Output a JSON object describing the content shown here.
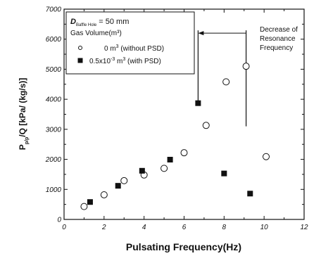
{
  "chart_data": {
    "type": "scatter",
    "title": "",
    "xlabel": "Pulsating Frequency(Hz)",
    "ylabel_main": "P",
    "ylabel_sub": "p/p",
    "ylabel_rest": "/Q [kPa/ (kg/s)]",
    "xlim": [
      0,
      12
    ],
    "ylim": [
      0,
      7000
    ],
    "xticks": [
      0,
      2,
      4,
      6,
      8,
      10,
      12
    ],
    "yticks": [
      0,
      1000,
      2000,
      3000,
      4000,
      5000,
      6000,
      7000
    ],
    "legend": {
      "placement": "top-left",
      "line1_prefix": "D",
      "line1_sub": "Baffle Hole",
      "line1_suffix": " = 50 mm",
      "line2": "Gas Volume(m³)"
    },
    "series": [
      {
        "name": "0 m³ (without PSD)",
        "legend_value": "0 m",
        "legend_sup": "3",
        "legend_rest": " (without PSD)",
        "marker": "open-circle",
        "color": "#111111",
        "x": [
          1.0,
          2.0,
          3.0,
          4.0,
          5.0,
          6.0,
          7.1,
          8.1,
          9.1,
          10.1
        ],
        "y": [
          430,
          820,
          1290,
          1480,
          1700,
          2220,
          3130,
          4580,
          5100,
          2090
        ]
      },
      {
        "name": "0.5x10⁻³ m³ (with PSD)",
        "legend_value": "0.5x10",
        "legend_sup": "-3",
        "legend_rest": " m",
        "legend_sup2": "3",
        "legend_rest2": " (with PSD)",
        "marker": "filled-square",
        "color": "#111111",
        "x": [
          1.3,
          2.7,
          3.9,
          5.3,
          6.7,
          8.0,
          9.3
        ],
        "y": [
          580,
          1120,
          1620,
          1990,
          3870,
          1530,
          860
        ]
      }
    ],
    "annotation": {
      "line1": "Decrease of",
      "line2": "Resonance",
      "line3": "Frequency",
      "from_x": 6.7,
      "to_x": 9.1,
      "line_top_y": 6200,
      "left_bottom_y": 3870,
      "right_bottom_y": 3100
    }
  }
}
